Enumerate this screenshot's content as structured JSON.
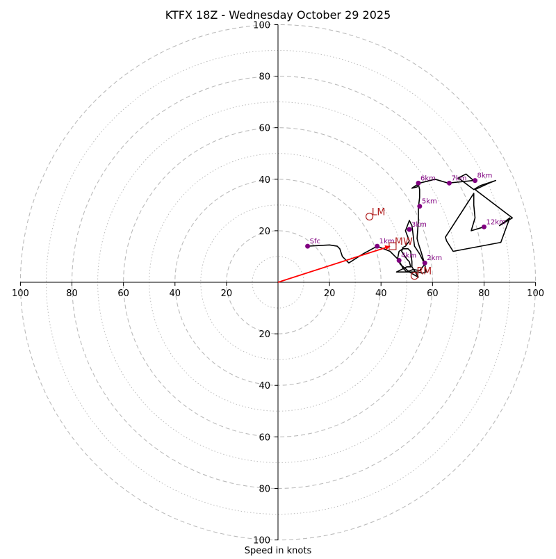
{
  "chart_data": {
    "type": "hodograph",
    "title": "KTFX 18Z - Wednesday October 29 2025",
    "xlabel": "Speed in knots",
    "axis_range": [
      -100,
      100
    ],
    "axis_ticks": [
      -100,
      -80,
      -60,
      -40,
      -20,
      20,
      40,
      60,
      80,
      100
    ],
    "tick_labels": [
      "100",
      "80",
      "60",
      "40",
      "20",
      "20",
      "40",
      "60",
      "80",
      "100"
    ],
    "rings_major": [
      20,
      40,
      60,
      80,
      100
    ],
    "rings_minor": [
      10,
      30,
      50,
      70,
      90
    ],
    "grid": true,
    "colors": {
      "trace": "#000000",
      "height_marker": "#800080",
      "storm_motion": "#b22222",
      "shear_vector": "#ff0000",
      "grid": "#bbbbbb"
    },
    "trace_points": [
      [
        11.5,
        14.0
      ],
      [
        20,
        14.5
      ],
      [
        23,
        14
      ],
      [
        24,
        13
      ],
      [
        25,
        10
      ],
      [
        27.5,
        7.5
      ],
      [
        33,
        11
      ],
      [
        38.5,
        14
      ],
      [
        43.5,
        12
      ],
      [
        46.5,
        9
      ],
      [
        47.5,
        7
      ],
      [
        51,
        4
      ],
      [
        53.5,
        2.5
      ],
      [
        54.5,
        2
      ],
      [
        52,
        6
      ],
      [
        52,
        8
      ],
      [
        51.5,
        12
      ],
      [
        50.5,
        13
      ],
      [
        48.5,
        13
      ],
      [
        47,
        12
      ],
      [
        46.5,
        9.5
      ],
      [
        47.5,
        7.5
      ],
      [
        48.5,
        5.5
      ],
      [
        50,
        4
      ],
      [
        52.5,
        5
      ],
      [
        55,
        4.5
      ],
      [
        57,
        7
      ],
      [
        55,
        11
      ],
      [
        53,
        14
      ],
      [
        52.5,
        18
      ],
      [
        52,
        22
      ],
      [
        51,
        24
      ],
      [
        49.5,
        20
      ],
      [
        51,
        16
      ],
      [
        49.5,
        14
      ],
      [
        48.5,
        13.5
      ],
      [
        48,
        12
      ],
      [
        49,
        10.5
      ],
      [
        50,
        9
      ],
      [
        51,
        8
      ],
      [
        51.5,
        6
      ],
      [
        50,
        6
      ],
      [
        46,
        4
      ],
      [
        54.5,
        4
      ],
      [
        56,
        3.5
      ],
      [
        57.5,
        4
      ],
      [
        57,
        7
      ],
      [
        55.5,
        12
      ],
      [
        54.5,
        15
      ],
      [
        54,
        17
      ],
      [
        54.5,
        24
      ],
      [
        54.5,
        29
      ],
      [
        55,
        33
      ],
      [
        55,
        36
      ],
      [
        54.5,
        38
      ],
      [
        54,
        37
      ],
      [
        52,
        36.5
      ],
      [
        55,
        38.5
      ],
      [
        61,
        40
      ],
      [
        66,
        38.5
      ],
      [
        71,
        39
      ],
      [
        76,
        39.5
      ],
      [
        76.5,
        39
      ],
      [
        73,
        42
      ],
      [
        70,
        40.5
      ],
      [
        76,
        36
      ],
      [
        78.5,
        37.5
      ],
      [
        84.5,
        39.5
      ],
      [
        82,
        38.5
      ],
      [
        76.5,
        36
      ],
      [
        91,
        25
      ],
      [
        86,
        22
      ],
      [
        90,
        25
      ],
      [
        86.5,
        15.5
      ],
      [
        68,
        12
      ],
      [
        65.5,
        16
      ],
      [
        65,
        17.5
      ],
      [
        76,
        34.5
      ],
      [
        76,
        30
      ],
      [
        76.5,
        25
      ],
      [
        75,
        20
      ],
      [
        80,
        21.5
      ]
    ],
    "height_markers": [
      {
        "label": "Sfc",
        "u": 11.5,
        "v": 14.0
      },
      {
        "label": "1km",
        "u": 38.5,
        "v": 14.0
      },
      {
        "label": "2km",
        "u": 57.0,
        "v": 7.5
      },
      {
        "label": "3km",
        "u": 51.0,
        "v": 20.5
      },
      {
        "label": "4km",
        "u": 47.0,
        "v": 8.5
      },
      {
        "label": "5km",
        "u": 55.0,
        "v": 29.5
      },
      {
        "label": "6km",
        "u": 54.5,
        "v": 38.5
      },
      {
        "label": "7km",
        "u": 66.5,
        "v": 38.5
      },
      {
        "label": "8km",
        "u": 76.5,
        "v": 39.5
      },
      {
        "label": "12km",
        "u": 80.0,
        "v": 21.5
      }
    ],
    "storm_motion": [
      {
        "label": "LM",
        "u": 35.5,
        "v": 25.5,
        "shape": "circle"
      },
      {
        "label": "MW",
        "u": 44.5,
        "v": 14.0,
        "shape": "square"
      },
      {
        "label": "RM",
        "u": 53.0,
        "v": 2.5,
        "shape": "circle"
      }
    ],
    "shear_vector": {
      "from": [
        0,
        0
      ],
      "to": [
        43.5,
        14.0
      ]
    }
  }
}
